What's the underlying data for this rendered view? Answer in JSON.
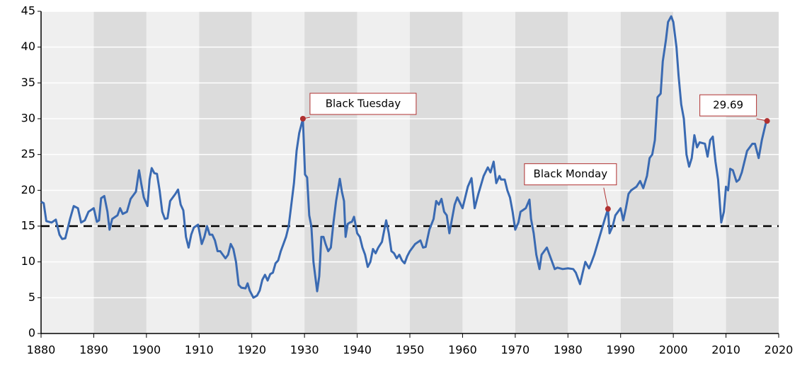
{
  "chart_data": {
    "type": "line",
    "x": [
      1880.0,
      1880.5,
      1881,
      1882,
      1882.8,
      1883.5,
      1884,
      1884.6,
      1885.5,
      1886.2,
      1887,
      1887.6,
      1888.3,
      1889,
      1890,
      1890.6,
      1891,
      1891.4,
      1892,
      1892.6,
      1893,
      1893.5,
      1894.5,
      1895,
      1895.5,
      1896.3,
      1897,
      1898,
      1898.6,
      1899,
      1899.5,
      1900.2,
      1900.6,
      1901,
      1901.5,
      1902,
      1902.5,
      1903,
      1903.5,
      1904,
      1904.5,
      1905.5,
      1906,
      1906.5,
      1907,
      1907.5,
      1908,
      1908.5,
      1909,
      1909.8,
      1910.5,
      1911,
      1911.5,
      1912,
      1912.5,
      1913,
      1913.5,
      1914,
      1915,
      1915.5,
      1916,
      1916.5,
      1917,
      1917.5,
      1918,
      1918.8,
      1919.2,
      1919.6,
      1920.3,
      1921,
      1921.5,
      1922,
      1922.5,
      1923,
      1923.5,
      1924,
      1924.5,
      1925,
      1925.5,
      1926,
      1926.5,
      1927,
      1927.5,
      1928,
      1928.5,
      1929,
      1929.7,
      1930.1,
      1930.5,
      1930.9,
      1931.3,
      1931.7,
      1932.4,
      1932.8,
      1933.2,
      1933.6,
      1934,
      1934.5,
      1935,
      1935.5,
      1936,
      1936.7,
      1937.1,
      1937.5,
      1937.8,
      1938.2,
      1938.6,
      1939,
      1939.4,
      1940,
      1940.5,
      1941,
      1941.5,
      1942,
      1942.5,
      1943,
      1943.5,
      1944,
      1944.7,
      1945.5,
      1946,
      1946.5,
      1947,
      1947.5,
      1948,
      1948.5,
      1949,
      1949.5,
      1950,
      1951,
      1952,
      1952.5,
      1953,
      1953.7,
      1954.5,
      1955,
      1955.5,
      1956,
      1956.5,
      1957,
      1957.5,
      1958,
      1958.5,
      1959,
      1960,
      1961,
      1961.7,
      1962.3,
      1963,
      1964,
      1964.8,
      1965.3,
      1965.9,
      1966.4,
      1967,
      1967.3,
      1968,
      1968.5,
      1969,
      1969.5,
      1970,
      1970.6,
      1971,
      1972,
      1972.7,
      1973,
      1973.5,
      1974,
      1974.6,
      1975,
      1976,
      1976.5,
      1977,
      1977.5,
      1978,
      1979,
      1980,
      1981,
      1981.5,
      1982.3,
      1982.8,
      1983.3,
      1984,
      1984.5,
      1985,
      1986,
      1987,
      1987.6,
      1987.9,
      1988.5,
      1989,
      1990,
      1990.5,
      1991,
      1991.5,
      1992,
      1993,
      1993.7,
      1994.3,
      1995,
      1995.5,
      1996,
      1996.5,
      1997,
      1997.6,
      1998,
      1998.6,
      1999,
      1999.6,
      2000,
      2000.6,
      2001,
      2001.5,
      2002,
      2002.5,
      2003,
      2003.5,
      2004,
      2004.5,
      2005,
      2006,
      2006.5,
      2007,
      2007.5,
      2008,
      2008.5,
      2009.1,
      2009.6,
      2010,
      2010.4,
      2010.8,
      2011.3,
      2012,
      2012.5,
      2013,
      2014,
      2015,
      2015.5,
      2016.2,
      2016.8,
      2017.5,
      2017.8
    ],
    "series": [
      {
        "color": "#3a6ab2",
        "values": [
          18.4,
          18.2,
          15.7,
          15.5,
          15.9,
          13.8,
          13.2,
          13.3,
          16,
          17.8,
          17.5,
          15.5,
          15.8,
          17,
          17.5,
          15.6,
          15.8,
          18.9,
          19.2,
          17,
          14.5,
          16,
          16.5,
          17.5,
          16.7,
          17,
          18.8,
          19.8,
          22.8,
          21,
          19,
          17.8,
          21.5,
          23.1,
          22.4,
          22.3,
          20,
          17,
          16,
          16.1,
          18.5,
          19.5,
          20.1,
          18,
          17.2,
          13.5,
          12,
          13.8,
          14.8,
          15.2,
          12.5,
          13.5,
          15,
          13.8,
          13.8,
          13,
          11.5,
          11.5,
          10.5,
          11,
          12.5,
          11.8,
          10,
          6.8,
          6.4,
          6.3,
          7,
          6,
          5,
          5.3,
          6,
          7.5,
          8.2,
          7.4,
          8.3,
          8.5,
          9.8,
          10.2,
          11.5,
          12.5,
          13.5,
          15,
          18,
          21,
          25.5,
          28,
          30,
          22.2,
          21.8,
          16.5,
          15,
          10,
          5.9,
          8,
          13.5,
          13.5,
          12.5,
          11.5,
          12,
          15.5,
          18.5,
          21.6,
          19.8,
          18.5,
          13.5,
          15.3,
          15.5,
          15.6,
          16.3,
          14,
          13.5,
          12,
          11,
          9.3,
          10,
          11.8,
          11.2,
          12,
          12.8,
          15.8,
          14,
          11.5,
          11.2,
          10.5,
          11,
          10.2,
          9.8,
          10.8,
          11.5,
          12.5,
          13,
          12,
          12.1,
          14.5,
          16,
          18.5,
          18,
          18.8,
          17,
          16.5,
          14,
          16,
          18,
          19,
          17.5,
          20.5,
          21.7,
          17.5,
          19.5,
          22,
          23.2,
          22.5,
          24,
          21,
          22,
          21.5,
          21.5,
          20,
          19,
          17,
          14.5,
          15.5,
          17,
          17.5,
          18.7,
          16,
          14,
          11,
          9,
          11,
          12,
          11,
          10,
          9,
          9.2,
          9,
          9.1,
          9,
          8.5,
          6.9,
          8.5,
          10,
          9.1,
          10,
          11,
          13.5,
          16,
          17.4,
          14,
          15,
          16.5,
          17.5,
          15.8,
          17.5,
          19.5,
          20,
          20.5,
          21.3,
          20.3,
          22,
          24.5,
          25,
          27,
          33,
          33.5,
          38,
          41,
          43.5,
          44.3,
          43.5,
          40,
          36,
          32,
          30,
          25,
          23.3,
          24.5,
          27.7,
          26,
          26.7,
          26.5,
          24.7,
          27,
          27.5,
          24,
          21.5,
          15.5,
          17,
          20.5,
          20,
          23,
          22.8,
          21.2,
          21.5,
          22.5,
          25.5,
          26.5,
          26.5,
          24.5,
          27,
          29.2,
          30
        ]
      }
    ],
    "xlim": [
      1880,
      2020
    ],
    "xticks": [
      1880,
      1890,
      1900,
      1910,
      1920,
      1930,
      1940,
      1950,
      1960,
      1970,
      1980,
      1990,
      2000,
      2010,
      2020
    ],
    "ylim": [
      0,
      45
    ],
    "yticks": [
      0,
      5,
      10,
      15,
      20,
      25,
      30,
      35,
      40,
      45
    ],
    "grid": true,
    "hline": 15,
    "annotations": [
      {
        "text": "Black Tuesday",
        "x": 1929.7,
        "y": 30
      },
      {
        "text": "Black Monday",
        "x": 1987.6,
        "y": 17.4
      },
      {
        "text": "29.69",
        "x": 2017.8,
        "y": 29.69
      }
    ],
    "annotation_color": "#b03030"
  }
}
